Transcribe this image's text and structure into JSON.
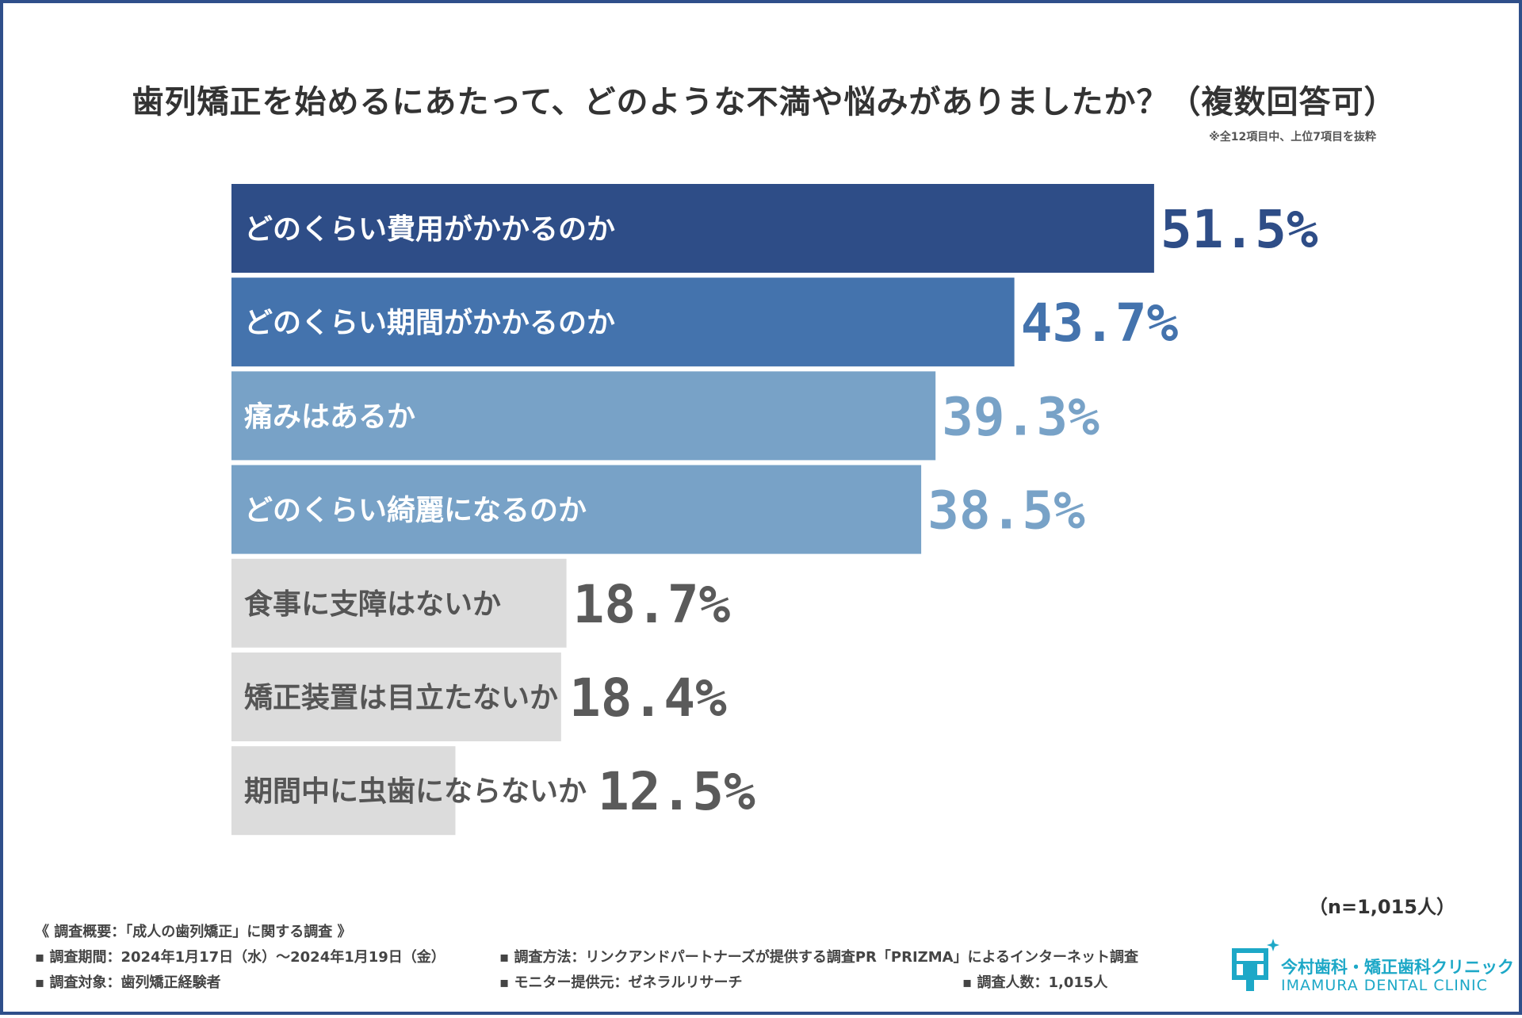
{
  "chart_data": {
    "type": "bar",
    "orientation": "horizontal",
    "title": "歯列矯正を始めるにあたって、どのような不満や悩みがありましたか？（複数回答可）",
    "note": "※全12項目中、上位7項目を抜粋",
    "categories": [
      "どのくらい費用がかかるのか",
      "どのくらい期間がかかるのか",
      "痛みはあるか",
      "どのくらい綺麗になるのか",
      "食事に支障はないか",
      "矯正装置は目立たないか",
      "期間中に虫歯にならないか"
    ],
    "values": [
      51.5,
      43.7,
      39.3,
      38.5,
      18.7,
      18.4,
      12.5
    ],
    "value_labels": [
      "51.5%",
      "43.7%",
      "39.3%",
      "38.5%",
      "18.7%",
      "18.4%",
      "12.5%"
    ],
    "unit": "%",
    "xlim": [
      0,
      60
    ],
    "bar_colors": [
      "#2e4d87",
      "#4473ad",
      "#78a2c7",
      "#78a2c7",
      "#dcdcdc",
      "#dcdcdc",
      "#dcdcdc"
    ],
    "bar_label_colors": [
      "#ffffff",
      "#ffffff",
      "#ffffff",
      "#ffffff",
      "#555555",
      "#555555",
      "#555555"
    ],
    "value_colors": [
      "#2e4d87",
      "#4473ad",
      "#78a2c7",
      "#78a2c7",
      "#5a5a5a",
      "#5a5a5a",
      "#5a5a5a"
    ]
  },
  "sample": "（n=1,015人）",
  "survey": {
    "heading": "《 調査概要：「成人の歯列矯正」に関する調査 》",
    "period": "▪ 調査期間：2024年1月17日（水）〜2024年1月19日（金）",
    "method": "▪ 調査方法：リンクアンドパートナーズが提供する調査PR「PRIZMA」によるインターネット調査",
    "target": "▪ 調査対象：歯列矯正経験者",
    "monitor": "▪ モニター提供元：ゼネラルリサーチ",
    "count": "▪ 調査人数：1,015人"
  },
  "logo": {
    "name": "今村歯科・矯正歯科クリニック",
    "name_en": "IMAMURA DENTAL CLINIC",
    "color": "#1da8c7"
  },
  "frame_color": "#2f4f8a"
}
